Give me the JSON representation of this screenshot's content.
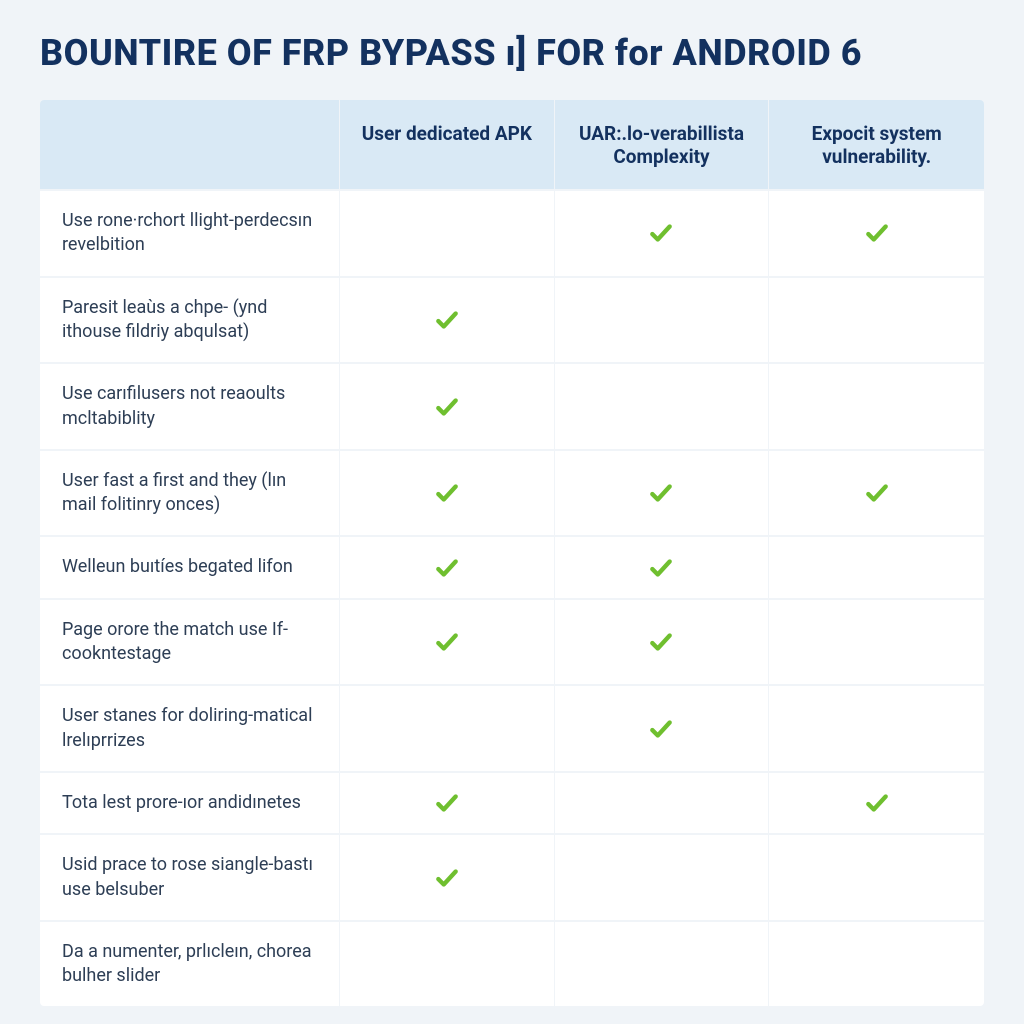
{
  "title": {
    "part1": "BOUNTIRE OF FRP BYPASS",
    "sep": " ı] ",
    "part2": "FOR ",
    "part3": "for",
    "part4": " ANDROID 6"
  },
  "colors": {
    "title": "#13315f",
    "header_bg": "#d9e9f5",
    "page_bg": "#f0f4f8",
    "row_bg": "#ffffff",
    "label_text": "#2d3e55",
    "check": "#6fbf2f",
    "divider": "#f0f4f8"
  },
  "table": {
    "type": "table",
    "column_template": "300px 1fr 1fr 1fr",
    "header_fontsize": 19,
    "label_fontsize": 18,
    "columns": [
      "",
      "User dedicated APK",
      "UAR:.lo-verabillista Complexity",
      "Expocit system vulnerability."
    ],
    "rows": [
      {
        "label": "Use rone·rchort llight-perdecsın revelbition",
        "checks": [
          false,
          true,
          true
        ]
      },
      {
        "label": "Paresit leaùs a chpe-\n(ynd ithouse fildriy abqulsat)",
        "checks": [
          true,
          false,
          false
        ]
      },
      {
        "label": "Use carıfilusers not reaoults mcltabiblity",
        "checks": [
          true,
          false,
          false
        ]
      },
      {
        "label": "User fast a first and they (lın mail folitinry onces)",
        "checks": [
          true,
          true,
          true
        ]
      },
      {
        "label": "Welleun buıtíes begated lifon",
        "checks": [
          true,
          true,
          false
        ]
      },
      {
        "label": "Page orore the match use If-cookntestage",
        "checks": [
          true,
          true,
          false
        ]
      },
      {
        "label": "User stanes for doliring-matical lrelıprrizes",
        "checks": [
          false,
          true,
          false
        ]
      },
      {
        "label": "Tota lest prore-ıor andidınetes",
        "checks": [
          true,
          false,
          true
        ]
      },
      {
        "label": "Usid prace to rose siangle-bastı use belsuber",
        "checks": [
          true,
          false,
          false
        ]
      },
      {
        "label": "Da a numenter, prlıcleın, chorea bulher slider",
        "checks": [
          false,
          false,
          false
        ]
      }
    ]
  }
}
